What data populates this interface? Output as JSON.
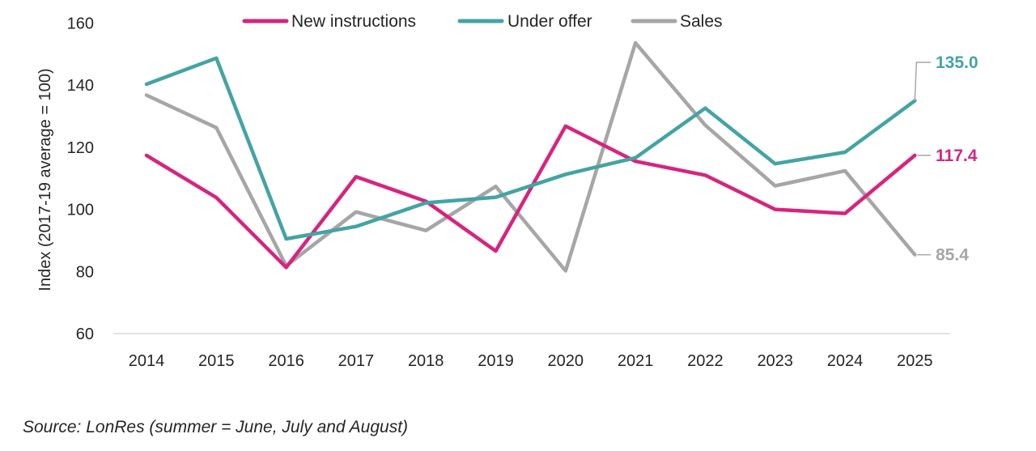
{
  "chart_data": {
    "type": "line",
    "title": "",
    "xlabel": "",
    "ylabel": "Index (2017-19 average = 100)",
    "ylim": [
      60,
      160
    ],
    "yticks": [
      60,
      80,
      100,
      120,
      140,
      160
    ],
    "categories": [
      "2014",
      "2015",
      "2016",
      "2017",
      "2018",
      "2019",
      "2020",
      "2021",
      "2022",
      "2023",
      "2024",
      "2025"
    ],
    "legend_position": "top",
    "series": [
      {
        "name": "New instructions",
        "color": "#D6257E",
        "values": [
          117.4,
          103.8,
          81.3,
          110.5,
          102.6,
          86.6,
          126.8,
          115.5,
          111.0,
          100.0,
          98.7,
          117.4
        ],
        "end_label": "117.4"
      },
      {
        "name": "Under offer",
        "color": "#43A4A3",
        "values": [
          140.3,
          148.7,
          90.5,
          94.5,
          102.1,
          103.9,
          111.3,
          116.6,
          132.6,
          114.7,
          118.4,
          135.0
        ],
        "end_label": "135.0"
      },
      {
        "name": "Sales",
        "color": "#A6A6A6",
        "values": [
          136.8,
          126.3,
          81.8,
          99.2,
          93.2,
          107.4,
          80.2,
          153.6,
          127.1,
          107.6,
          112.4,
          85.4
        ],
        "end_label": "85.4"
      }
    ]
  },
  "source_text": "Source: LonRes (summer = June, July and August)"
}
